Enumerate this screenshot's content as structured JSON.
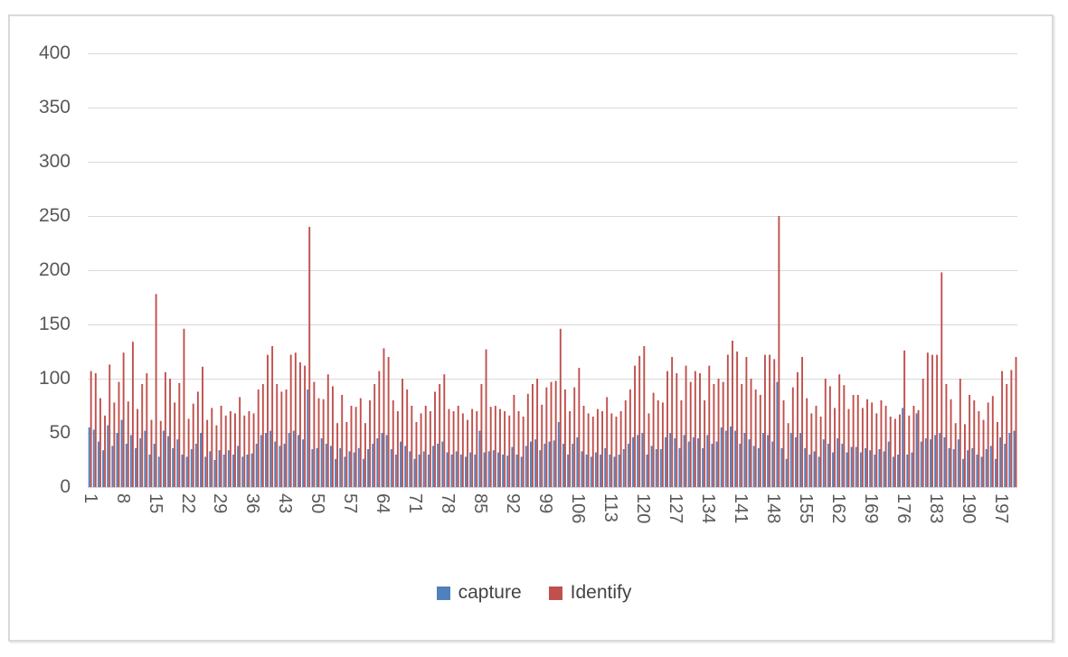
{
  "chart_data": {
    "type": "bar",
    "title": "",
    "n_points": 200,
    "x_tick_labels": [
      "1",
      "8",
      "15",
      "22",
      "29",
      "36",
      "43",
      "50",
      "57",
      "64",
      "71",
      "78",
      "85",
      "92",
      "99",
      "106",
      "113",
      "120",
      "127",
      "134",
      "141",
      "148",
      "155",
      "162",
      "169",
      "176",
      "183",
      "190",
      "197"
    ],
    "x_tick_step": 7,
    "y_ticks": [
      0,
      50,
      100,
      150,
      200,
      250,
      300,
      350,
      400
    ],
    "ylim": [
      0,
      400
    ],
    "grid": true,
    "legend_position": "bottom",
    "colors": {
      "gridline": "#D9D9D9",
      "axis_line": "#D9D9D9",
      "axis_text": "#595959",
      "frame_border": "#D9D9D9"
    },
    "series": [
      {
        "name": "capture",
        "color": "#4F81BD",
        "values": [
          55,
          53,
          42,
          34,
          57,
          38,
          50,
          62,
          40,
          48,
          36,
          45,
          52,
          30,
          40,
          28,
          52,
          47,
          36,
          44,
          30,
          28,
          35,
          40,
          50,
          28,
          33,
          25,
          34,
          30,
          34,
          30,
          38,
          28,
          30,
          31,
          40,
          48,
          50,
          52,
          42,
          38,
          40,
          50,
          52,
          48,
          44,
          90,
          35,
          36,
          45,
          40,
          38,
          26,
          36,
          28,
          33,
          32,
          36,
          26,
          35,
          40,
          45,
          50,
          48,
          35,
          30,
          42,
          38,
          33,
          26,
          30,
          33,
          30,
          38,
          40,
          42,
          32,
          30,
          33,
          30,
          28,
          32,
          30,
          52,
          32,
          33,
          34,
          32,
          30,
          29,
          37,
          30,
          28,
          38,
          42,
          44,
          34,
          40,
          42,
          43,
          60,
          40,
          30,
          40,
          46,
          33,
          30,
          28,
          32,
          30,
          36,
          30,
          28,
          30,
          35,
          40,
          46,
          48,
          50,
          30,
          38,
          35,
          35,
          46,
          50,
          45,
          36,
          48,
          42,
          46,
          45,
          36,
          48,
          40,
          42,
          55,
          52,
          56,
          52,
          40,
          50,
          44,
          38,
          36,
          50,
          48,
          42,
          97,
          36,
          26,
          50,
          46,
          50,
          36,
          30,
          33,
          28,
          44,
          40,
          32,
          45,
          40,
          32,
          37,
          37,
          32,
          36,
          34,
          30,
          35,
          33,
          42,
          28,
          30,
          73,
          30,
          32,
          68,
          42,
          45,
          44,
          48,
          50,
          46,
          36,
          35,
          44,
          26,
          34,
          36,
          30,
          28,
          35,
          38,
          26,
          46,
          40,
          50,
          52
        ]
      },
      {
        "name": "Identify",
        "color": "#C0504D",
        "values": [
          107,
          105,
          82,
          66,
          113,
          78,
          97,
          124,
          79,
          134,
          72,
          95,
          105,
          62,
          178,
          61,
          106,
          100,
          78,
          96,
          146,
          63,
          77,
          88,
          111,
          62,
          73,
          57,
          75,
          66,
          70,
          68,
          83,
          66,
          70,
          68,
          90,
          95,
          122,
          130,
          95,
          88,
          90,
          122,
          124,
          115,
          112,
          240,
          97,
          82,
          81,
          104,
          93,
          59,
          85,
          60,
          75,
          74,
          82,
          59,
          80,
          95,
          107,
          128,
          120,
          80,
          70,
          100,
          90,
          75,
          60,
          68,
          75,
          70,
          88,
          95,
          104,
          72,
          70,
          75,
          68,
          62,
          72,
          70,
          95,
          127,
          74,
          75,
          72,
          70,
          66,
          85,
          70,
          65,
          86,
          95,
          100,
          76,
          92,
          97,
          98,
          146,
          90,
          70,
          92,
          110,
          75,
          68,
          65,
          72,
          70,
          83,
          68,
          65,
          70,
          80,
          90,
          112,
          121,
          130,
          68,
          87,
          80,
          78,
          107,
          120,
          105,
          80,
          112,
          97,
          107,
          105,
          80,
          112,
          95,
          100,
          97,
          122,
          135,
          125,
          95,
          120,
          100,
          90,
          85,
          122,
          122,
          118,
          250,
          80,
          59,
          92,
          106,
          120,
          82,
          68,
          75,
          65,
          100,
          93,
          73,
          104,
          94,
          72,
          85,
          85,
          73,
          81,
          78,
          68,
          80,
          75,
          65,
          63,
          67,
          126,
          66,
          75,
          71,
          100,
          124,
          122,
          122,
          198,
          95,
          81,
          59,
          100,
          58,
          85,
          80,
          70,
          62,
          78,
          84,
          60,
          107,
          95,
          108,
          120
        ]
      }
    ]
  }
}
